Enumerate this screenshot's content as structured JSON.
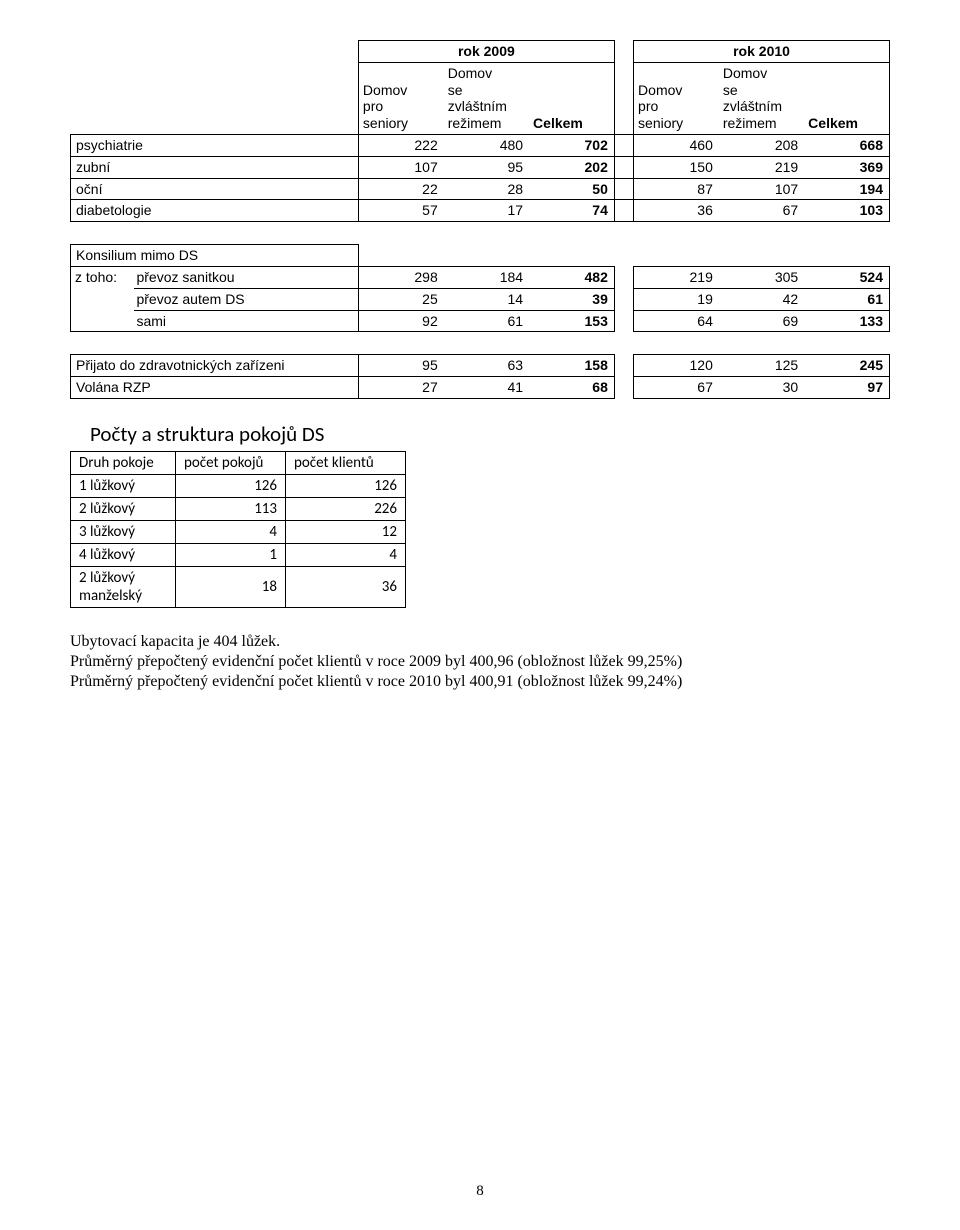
{
  "table1": {
    "year_headers": [
      "rok 2009",
      "rok 2010"
    ],
    "sub_headers": [
      "Domov pro seniory",
      "Domov se zvláštním režimem",
      "Celkem"
    ],
    "rows": [
      {
        "label": "psychiatrie",
        "a": [
          222,
          480,
          702
        ],
        "b": [
          460,
          208,
          668
        ]
      },
      {
        "label": "zubní",
        "a": [
          107,
          95,
          202
        ],
        "b": [
          150,
          219,
          369
        ]
      },
      {
        "label": "oční",
        "a": [
          22,
          28,
          50
        ],
        "b": [
          87,
          107,
          194
        ]
      },
      {
        "label": "diabetologie",
        "a": [
          57,
          17,
          74
        ],
        "b": [
          36,
          67,
          103
        ]
      }
    ]
  },
  "table2": {
    "title": "Konsilium mimo DS",
    "prefix": "z toho:",
    "rows": [
      {
        "label": "převoz sanitkou",
        "a": [
          298,
          184,
          482
        ],
        "b": [
          219,
          305,
          524
        ]
      },
      {
        "label": "převoz autem DS",
        "a": [
          25,
          14,
          39
        ],
        "b": [
          19,
          42,
          61
        ]
      },
      {
        "label": "sami",
        "a": [
          92,
          61,
          153
        ],
        "b": [
          64,
          69,
          133
        ]
      }
    ]
  },
  "table3": {
    "rows": [
      {
        "label": "Přijato do zdravotnických zařízeni",
        "a": [
          95,
          63,
          158
        ],
        "b": [
          120,
          125,
          245
        ]
      },
      {
        "label": "Volána RZP",
        "a": [
          27,
          41,
          68
        ],
        "b": [
          67,
          30,
          97
        ]
      }
    ]
  },
  "section_title": "Počty a struktura pokojů DS",
  "table4": {
    "headers": [
      "Druh pokoje",
      "počet pokojů",
      "počet klientů"
    ],
    "rows": [
      [
        "1 lůžkový",
        "126",
        "126"
      ],
      [
        "2 lůžkový",
        "113",
        "226"
      ],
      [
        "3 lůžkový",
        "4",
        "12"
      ],
      [
        "4 lůžkový",
        "1",
        "4"
      ],
      [
        "2 lůžkový manželský",
        "18",
        "36"
      ]
    ]
  },
  "para": [
    "Ubytovací kapacita je 404 lůžek.",
    "Průměrný přepočtený evidenční počet klientů v roce 2009 byl 400,96 (obložnost lůžek 99,25%)",
    "Průměrný přepočtený evidenční počet klientů v roce 2010 byl 400,91 (obložnost lůžek 99,24%)"
  ],
  "page_number": "8"
}
